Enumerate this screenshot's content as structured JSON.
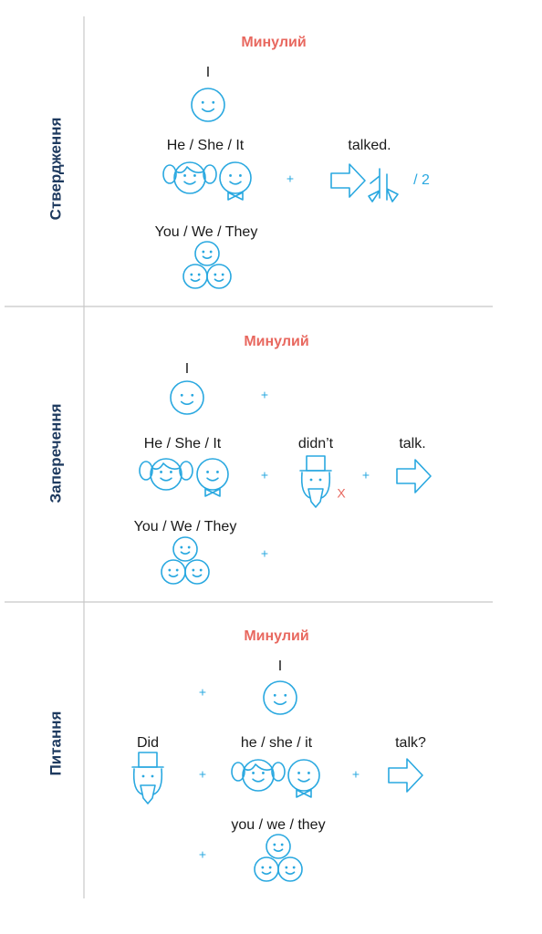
{
  "plus": "+",
  "sections": [
    {
      "side_label": "Ствердження",
      "title": "Минулий",
      "labels": [
        "I",
        "He / She / It",
        "You / We / They",
        "talked."
      ],
      "note": "/ 2"
    },
    {
      "side_label": "Заперечення",
      "title": "Минулий",
      "labels": [
        "I",
        "He / She / It",
        "You / We / They",
        "didn’t",
        "talk."
      ],
      "note": "X"
    },
    {
      "side_label": "Питання",
      "title": "Минулий",
      "labels": [
        "I",
        "Did",
        "he / she / it",
        "talk?",
        "you / we / they"
      ]
    }
  ]
}
